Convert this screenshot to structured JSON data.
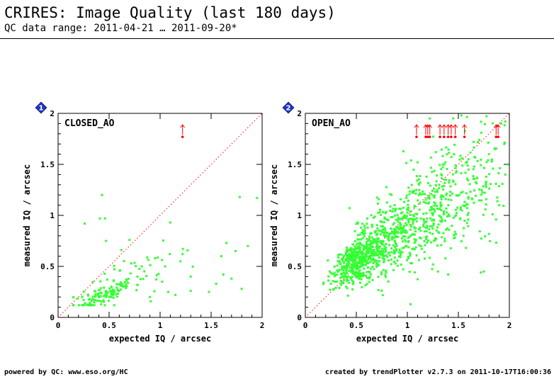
{
  "header": {
    "title": "CRIRES: Image Quality (last 180 days)",
    "subtitle": "QC data range: 2011-04-21 … 2011-09-20*"
  },
  "footer": {
    "left": "powered by QC: www.eso.org/HC",
    "right": "created by trendPlotter v2.7.3 on 2011-10-17T16:00:36"
  },
  "colors": {
    "points": "#33ff33",
    "outliers": "#ff0000",
    "diagonal": "#ff0000",
    "badge": "#1f35d6"
  },
  "chart_data": [
    {
      "type": "scatter",
      "panel_number": "1",
      "panel_label": "CLOSED_AO",
      "xlabel": "expected IQ / arcsec",
      "ylabel": "measured IQ / arcsec",
      "xlim": [
        0,
        2
      ],
      "ylim": [
        0,
        2
      ],
      "x_ticks": [
        "0",
        "0.5",
        "1",
        "1.5",
        "2"
      ],
      "y_ticks": [
        "0",
        "0.5",
        "1",
        "1.5",
        "2"
      ],
      "reference_line": "y = x",
      "grid": false,
      "point_seed": 11,
      "clusters": [
        {
          "n": 120,
          "x_center": 0.45,
          "x_spread": 0.15,
          "y_center": 0.22,
          "y_spread": 0.05
        },
        {
          "n": 45,
          "x_center": 0.7,
          "x_spread": 0.25,
          "y_center": 0.38,
          "y_spread": 0.15
        }
      ],
      "points": [
        [
          0.26,
          0.92
        ],
        [
          0.43,
          1.2
        ],
        [
          0.41,
          0.97
        ],
        [
          0.46,
          0.97
        ],
        [
          0.47,
          0.75
        ],
        [
          0.62,
          0.66
        ],
        [
          0.7,
          0.76
        ],
        [
          0.82,
          0.5
        ],
        [
          1.1,
          0.93
        ],
        [
          1.78,
          1.18
        ],
        [
          1.95,
          1.17
        ],
        [
          1.86,
          0.7
        ],
        [
          1.65,
          0.73
        ],
        [
          1.74,
          0.65
        ],
        [
          1.6,
          0.6
        ],
        [
          1.62,
          0.42
        ],
        [
          1.7,
          0.38
        ],
        [
          1.8,
          0.28
        ],
        [
          1.55,
          0.33
        ],
        [
          1.48,
          0.25
        ],
        [
          1.3,
          0.4
        ],
        [
          1.2,
          0.55
        ],
        [
          1.05,
          0.5
        ],
        [
          1.15,
          0.22
        ],
        [
          1.08,
          0.25
        ],
        [
          1.3,
          0.26
        ],
        [
          1.22,
          0.62
        ],
        [
          0.95,
          0.58
        ],
        [
          0.9,
          0.2
        ],
        [
          1.02,
          0.35
        ]
      ],
      "outliers": [
        [
          1.22,
          1.77
        ]
      ]
    },
    {
      "type": "scatter",
      "panel_number": "2",
      "panel_label": "OPEN_AO",
      "xlabel": "expected IQ / arcsec",
      "ylabel": "measured IQ / arcsec",
      "xlim": [
        0,
        2
      ],
      "ylim": [
        0,
        2
      ],
      "x_ticks": [
        "0",
        "0.5",
        "1",
        "1.5",
        "2"
      ],
      "y_ticks": [
        "0",
        "0.5",
        "1",
        "1.5",
        "2"
      ],
      "reference_line": "y = x",
      "grid": false,
      "point_seed": 29,
      "clusters": [
        {
          "n": 450,
          "x_center": 0.5,
          "x_spread": 0.12,
          "y_center": 0.55,
          "y_spread": 0.1
        },
        {
          "n": 380,
          "x_center": 0.85,
          "x_spread": 0.2,
          "y_center": 0.8,
          "y_spread": 0.18
        },
        {
          "n": 260,
          "x_center": 1.25,
          "x_spread": 0.22,
          "y_center": 1.05,
          "y_spread": 0.25
        },
        {
          "n": 110,
          "x_center": 1.7,
          "x_spread": 0.2,
          "y_center": 1.35,
          "y_spread": 0.3
        }
      ],
      "points": [
        [
          1.22,
          1.95
        ],
        [
          1.45,
          1.95
        ],
        [
          1.53,
          1.98
        ],
        [
          1.88,
          1.88
        ],
        [
          1.92,
          1.9
        ],
        [
          1.96,
          1.92
        ],
        [
          1.98,
          1.5
        ],
        [
          1.96,
          1.4
        ],
        [
          1.9,
          1.1
        ],
        [
          1.75,
          0.45
        ],
        [
          1.72,
          0.44
        ],
        [
          1.4,
          0.42
        ],
        [
          1.3,
          0.45
        ],
        [
          1.55,
          0.8
        ],
        [
          1.95,
          1.7
        ],
        [
          1.86,
          1.65
        ],
        [
          1.8,
          1.6
        ],
        [
          1.6,
          1.55
        ],
        [
          1.65,
          1.72
        ],
        [
          1.35,
          1.5
        ],
        [
          0.25,
          0.33
        ],
        [
          0.3,
          0.29
        ],
        [
          0.35,
          0.32
        ],
        [
          0.24,
          0.45
        ],
        [
          1.1,
          1.52
        ],
        [
          1.28,
          1.62
        ]
      ],
      "outliers": [
        [
          1.09,
          1.77
        ],
        [
          1.18,
          1.77
        ],
        [
          1.2,
          1.77
        ],
        [
          1.22,
          1.77
        ],
        [
          1.32,
          1.77
        ],
        [
          1.36,
          1.77
        ],
        [
          1.4,
          1.77
        ],
        [
          1.43,
          1.77
        ],
        [
          1.47,
          1.77
        ],
        [
          1.56,
          1.77
        ],
        [
          1.87,
          1.77
        ],
        [
          1.89,
          1.77
        ]
      ]
    }
  ]
}
